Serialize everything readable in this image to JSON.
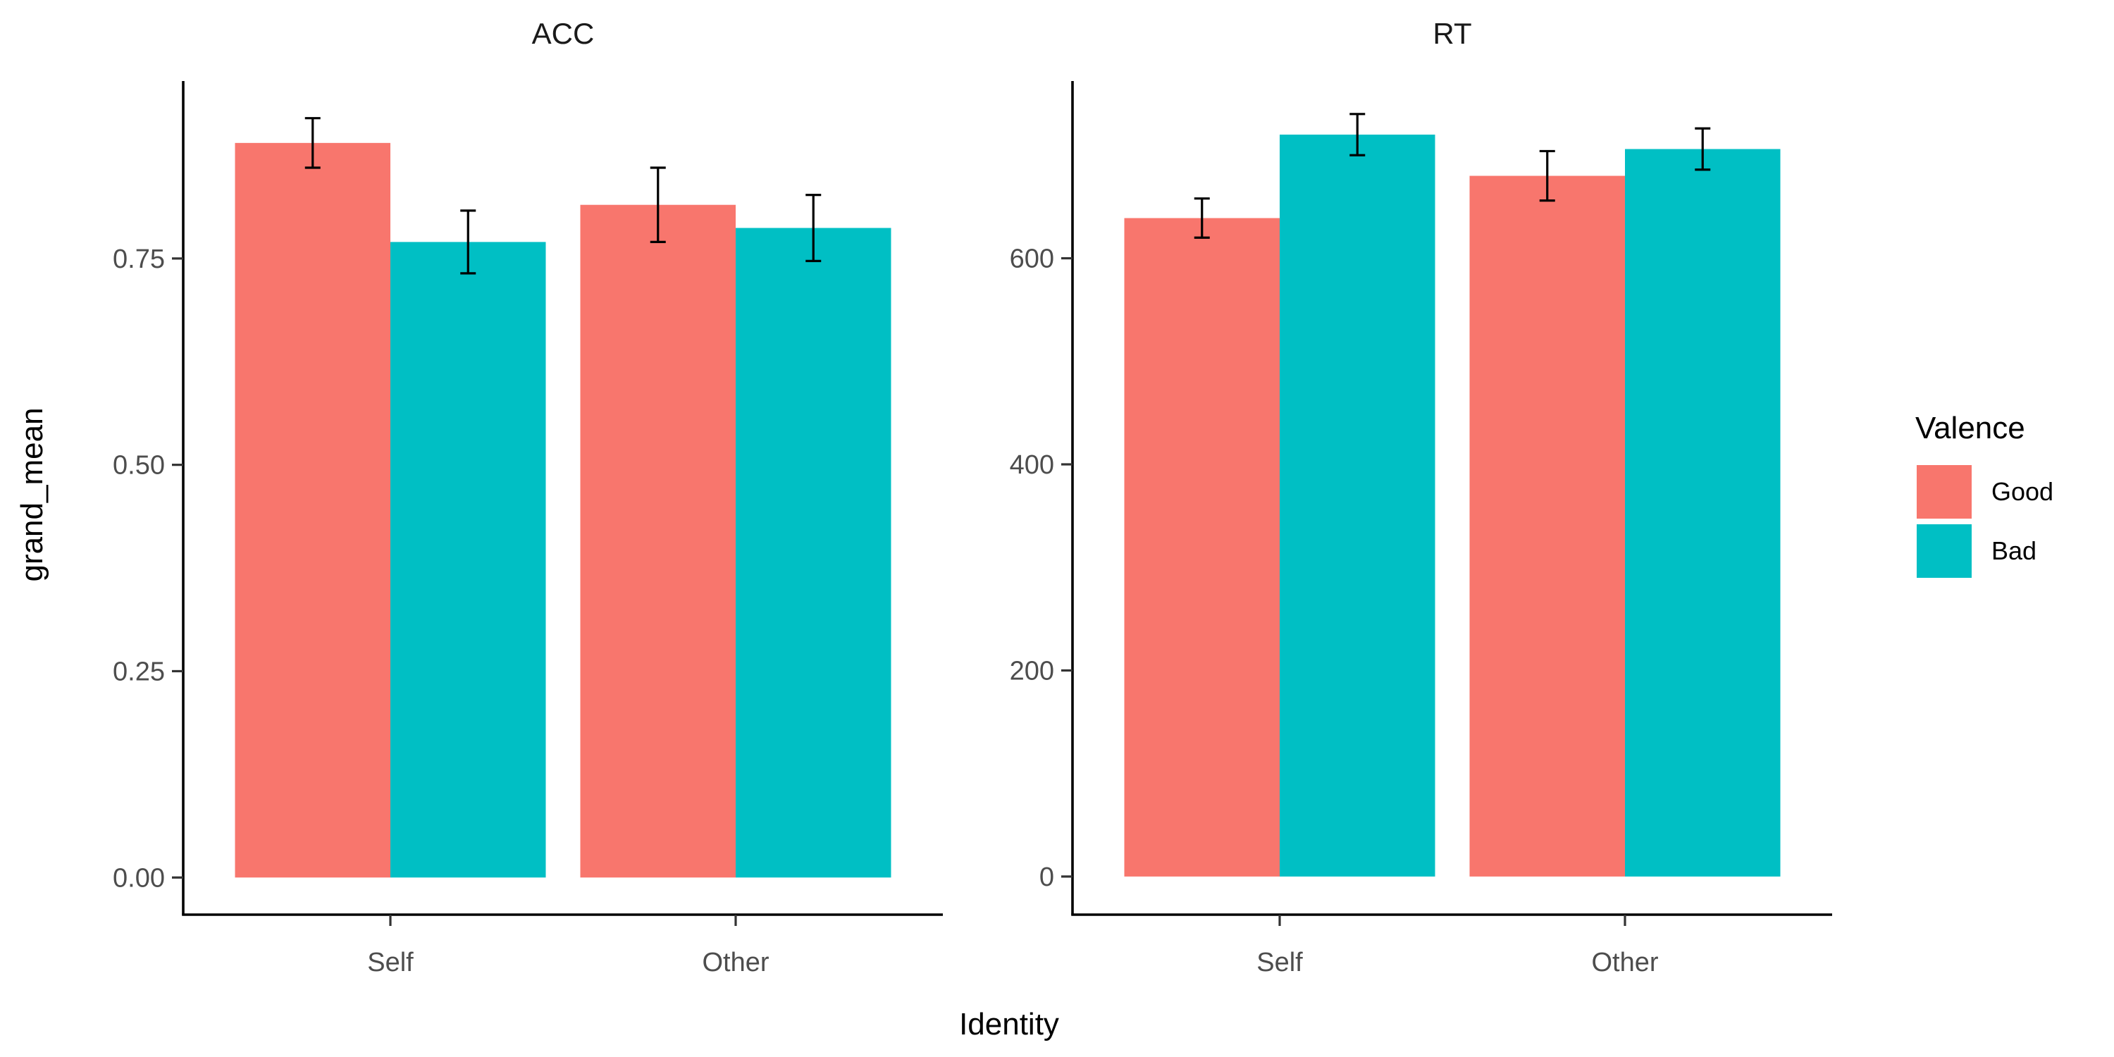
{
  "figure": {
    "xlabel": "Identity",
    "ylabel": "grand_mean"
  },
  "legend": {
    "title": "Valence",
    "items": [
      {
        "label": "Good",
        "color": "#F8766D"
      },
      {
        "label": "Bad",
        "color": "#00BFC4"
      }
    ],
    "placement": "right"
  },
  "chart_data": [
    {
      "type": "bar",
      "title": "ACC",
      "categories": [
        "Self",
        "Other"
      ],
      "series": [
        {
          "name": "Good",
          "color": "#F8766D",
          "values": [
            0.89,
            0.815
          ],
          "error": [
            0.03,
            0.045
          ]
        },
        {
          "name": "Bad",
          "color": "#00BFC4",
          "values": [
            0.77,
            0.787
          ],
          "error": [
            0.038,
            0.04
          ]
        }
      ],
      "ylim": [
        -0.045,
        0.965
      ],
      "yticks": [
        0,
        0.25,
        0.5,
        0.75
      ],
      "ytick_labels": [
        "0.00",
        "0.25",
        "0.50",
        "0.75"
      ],
      "grid": false
    },
    {
      "type": "bar",
      "title": "RT",
      "categories": [
        "Self",
        "Other"
      ],
      "series": [
        {
          "name": "Good",
          "color": "#F8766D",
          "values": [
            639,
            680
          ],
          "error": [
            19,
            24
          ]
        },
        {
          "name": "Bad",
          "color": "#00BFC4",
          "values": [
            720,
            706
          ],
          "error": [
            20,
            20
          ]
        }
      ],
      "ylim": [
        -37,
        772
      ],
      "yticks": [
        0,
        200,
        400,
        600
      ],
      "ytick_labels": [
        "0",
        "200",
        "400",
        "600"
      ],
      "grid": false
    }
  ]
}
